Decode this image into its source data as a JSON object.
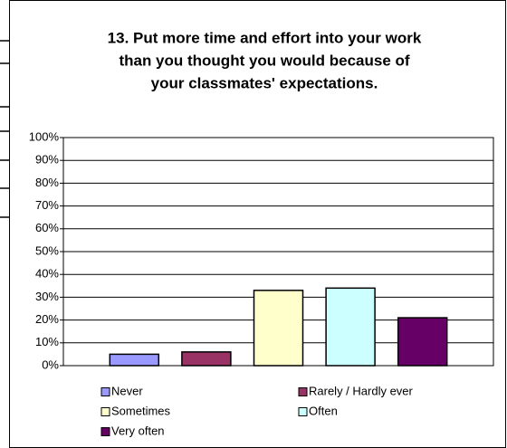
{
  "chart_data": {
    "type": "bar",
    "title": [
      "13. Put more time and effort into your work",
      "than you thought you would because of",
      "your classmates' expectations."
    ],
    "series": [
      {
        "name": "Never",
        "color": "#9999ff",
        "values": [
          5
        ]
      },
      {
        "name": "Rarely / Hardly ever",
        "color": "#993366",
        "values": [
          6
        ]
      },
      {
        "name": "Sometimes",
        "color": "#ffffcc",
        "values": [
          33
        ]
      },
      {
        "name": "Often",
        "color": "#ccffff",
        "values": [
          34
        ]
      },
      {
        "name": "Very often",
        "color": "#660066",
        "values": [
          21
        ]
      }
    ],
    "ylim": [
      0,
      100
    ],
    "yticks": [
      {
        "value": 0,
        "label": "0%"
      },
      {
        "value": 10,
        "label": "10%"
      },
      {
        "value": 20,
        "label": "20%"
      },
      {
        "value": 30,
        "label": "30%"
      },
      {
        "value": 40,
        "label": "40%"
      },
      {
        "value": 50,
        "label": "50%"
      },
      {
        "value": 60,
        "label": "60%"
      },
      {
        "value": 70,
        "label": "70%"
      },
      {
        "value": 80,
        "label": "80%"
      },
      {
        "value": 90,
        "label": "90%"
      },
      {
        "value": 100,
        "label": "100%"
      }
    ],
    "grid": true
  }
}
